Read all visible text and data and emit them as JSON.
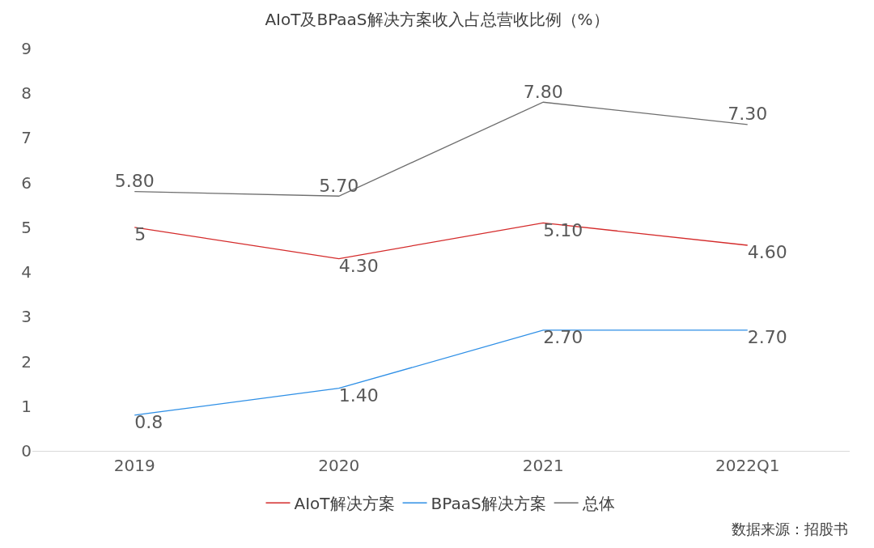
{
  "chart_data": {
    "type": "line",
    "title": "AIoT及BPaaS解决方案收入占总营收比例（%）",
    "categories": [
      "2019",
      "2020",
      "2021",
      "2022Q1"
    ],
    "series": [
      {
        "name": "AIoT解决方案",
        "color": "#d42a2a",
        "values": [
          5,
          4.3,
          5.1,
          4.6
        ],
        "value_labels": [
          "5",
          "4.30",
          "5.10",
          "4.60"
        ]
      },
      {
        "name": "BPaaS解决方案",
        "color": "#2e8fe6",
        "values": [
          0.8,
          1.4,
          2.7,
          2.7
        ],
        "value_labels": [
          "0.8",
          "1.40",
          "2.70",
          "2.70"
        ]
      },
      {
        "name": "总体",
        "color": "#6e6e6e",
        "values": [
          5.8,
          5.7,
          7.8,
          7.3
        ],
        "value_labels": [
          "5.80",
          "5.70",
          "7.80",
          "7.30"
        ]
      }
    ],
    "ylim": [
      0,
      9
    ],
    "yticks": [
      0,
      1,
      2,
      3,
      4,
      5,
      6,
      7,
      8,
      9
    ],
    "grid": false,
    "legend": "bottom",
    "marker": "none",
    "line_style": "solid",
    "annotations": [
      "数据来源：招股书"
    ]
  }
}
